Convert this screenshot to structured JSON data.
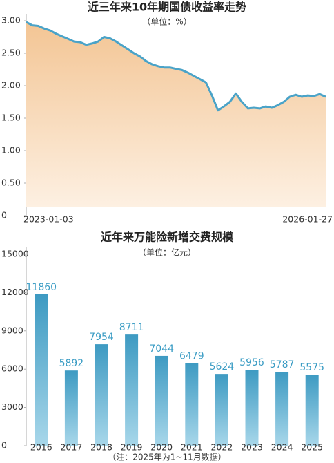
{
  "chart_data": [
    {
      "type": "area",
      "title": "近三年来10年期国债收益率走势",
      "subtitle": "（单位：%）",
      "categories": [
        "2023-01-03",
        null,
        null,
        null,
        null,
        null,
        null,
        null,
        null,
        null,
        null,
        null,
        null,
        null,
        null,
        null,
        null,
        null,
        null,
        null,
        null,
        null,
        null,
        null,
        null,
        null,
        null,
        null,
        null,
        null,
        null,
        null,
        null,
        null,
        null,
        null,
        null,
        null,
        null,
        null,
        null,
        null,
        null,
        null,
        null,
        null,
        null,
        null,
        null,
        null,
        "2026-01-27"
      ],
      "values": [
        2.98,
        2.93,
        2.92,
        2.88,
        2.85,
        2.8,
        2.76,
        2.72,
        2.68,
        2.67,
        2.63,
        2.65,
        2.68,
        2.75,
        2.73,
        2.68,
        2.62,
        2.56,
        2.5,
        2.45,
        2.38,
        2.33,
        2.3,
        2.28,
        2.28,
        2.26,
        2.24,
        2.2,
        2.15,
        2.1,
        2.05,
        1.85,
        1.62,
        1.68,
        1.75,
        1.88,
        1.75,
        1.65,
        1.66,
        1.65,
        1.68,
        1.66,
        1.7,
        1.75,
        1.83,
        1.86,
        1.83,
        1.85,
        1.84,
        1.87,
        1.83
      ],
      "color": "#4aa3c8",
      "ylim": [
        0,
        3
      ],
      "yticks": [
        0,
        {
          "value": 0.5,
          "label": "0.50"
        },
        {
          "value": 1,
          "label": "1.00"
        },
        {
          "value": 1.5,
          "label": "1.50"
        },
        {
          "value": 2,
          "label": "2.00"
        },
        {
          "value": 2.5,
          "label": "2.50"
        },
        {
          "value": 3,
          "label": "3.00"
        }
      ]
    },
    {
      "type": "bar",
      "title": "近年来万能险新增交费规模",
      "subtitle": "（单位：亿元）",
      "categories": [
        "2016",
        "2017",
        "2018",
        "2019",
        "2020",
        "2021",
        "2022",
        "2023",
        "2024",
        "2025"
      ],
      "values": [
        11860,
        5892,
        7954,
        8711,
        7044,
        6479,
        5624,
        5956,
        5787,
        5575
      ],
      "color": "#4aa3c8",
      "ylim": [
        0,
        15000
      ],
      "yticks": [
        0,
        3000,
        6000,
        9000,
        12000,
        15000
      ],
      "note": "（注：2025年为1~11月数据）"
    }
  ]
}
